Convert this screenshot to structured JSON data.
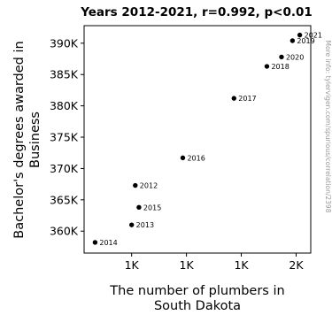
{
  "chart_data": {
    "type": "scatter",
    "title": "Years 2012-2021, r=0.992, p<0.01",
    "xlabel": [
      "The number of plumbers in",
      "South Dakota"
    ],
    "ylabel": [
      "Bachelor's degrees awarded in",
      "Business"
    ],
    "side_note": "More info: tylervigen.com/spurious/correlation/2398",
    "x_ticks": [
      "1K",
      "1K",
      "1K",
      "2K"
    ],
    "y_ticks": [
      "360K",
      "365K",
      "370K",
      "375K",
      "380K",
      "385K",
      "390K"
    ],
    "points": [
      {
        "label": "2012",
        "x": 1110,
        "y": 367300
      },
      {
        "label": "2013",
        "x": 1100,
        "y": 361000
      },
      {
        "label": "2014",
        "x": 1000,
        "y": 358200
      },
      {
        "label": "2015",
        "x": 1120,
        "y": 363800
      },
      {
        "label": "2016",
        "x": 1240,
        "y": 371700
      },
      {
        "label": "2017",
        "x": 1380,
        "y": 381200
      },
      {
        "label": "2018",
        "x": 1470,
        "y": 386300
      },
      {
        "label": "2019",
        "x": 1540,
        "y": 390400
      },
      {
        "label": "2020",
        "x": 1510,
        "y": 387800
      },
      {
        "label": "2021",
        "x": 1560,
        "y": 391300
      }
    ],
    "x_tick_values": [
      1100,
      1250,
      1400,
      1550
    ],
    "y_tick_values": [
      360000,
      365000,
      370000,
      375000,
      380000,
      385000,
      390000
    ],
    "xlim": [
      970,
      1590
    ],
    "ylim": [
      356500,
      392800
    ],
    "grid": false,
    "point_color": "#000000"
  }
}
